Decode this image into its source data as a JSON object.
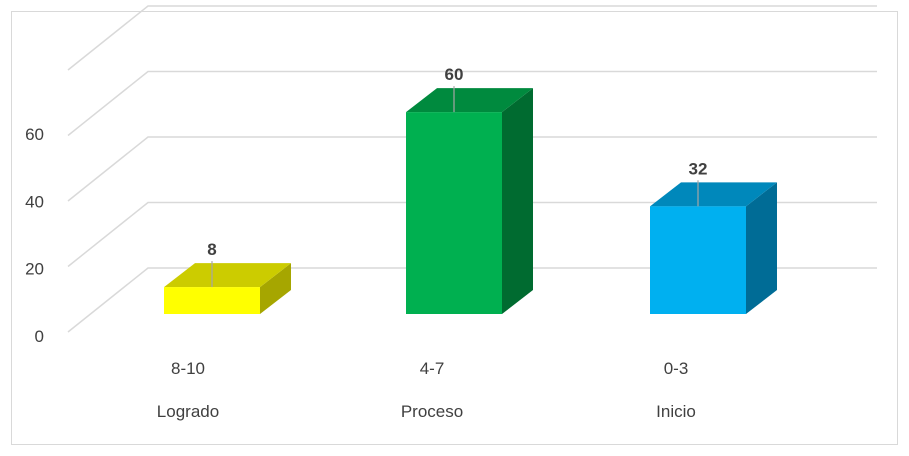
{
  "chart_data": {
    "type": "bar",
    "categories": [
      {
        "range": "8-10",
        "label": "Logrado"
      },
      {
        "range": "4-7",
        "label": "Proceso"
      },
      {
        "range": "0-3",
        "label": "Inicio"
      }
    ],
    "values": [
      8,
      60,
      32
    ],
    "data_labels": [
      "8",
      "60",
      "32"
    ],
    "ylim": [
      0,
      80
    ],
    "yticks": [
      "0",
      "20",
      "40",
      "60"
    ],
    "grid": true,
    "three_d": true,
    "colors": {
      "front": [
        "#ffff00",
        "#00b050",
        "#00b0f0"
      ],
      "top": [
        "#cccc00",
        "#008a3e",
        "#0088bb"
      ],
      "side": [
        "#a6a600",
        "#006b30",
        "#006c96"
      ],
      "grid": "#d9d9d9",
      "text": "#404040"
    }
  }
}
